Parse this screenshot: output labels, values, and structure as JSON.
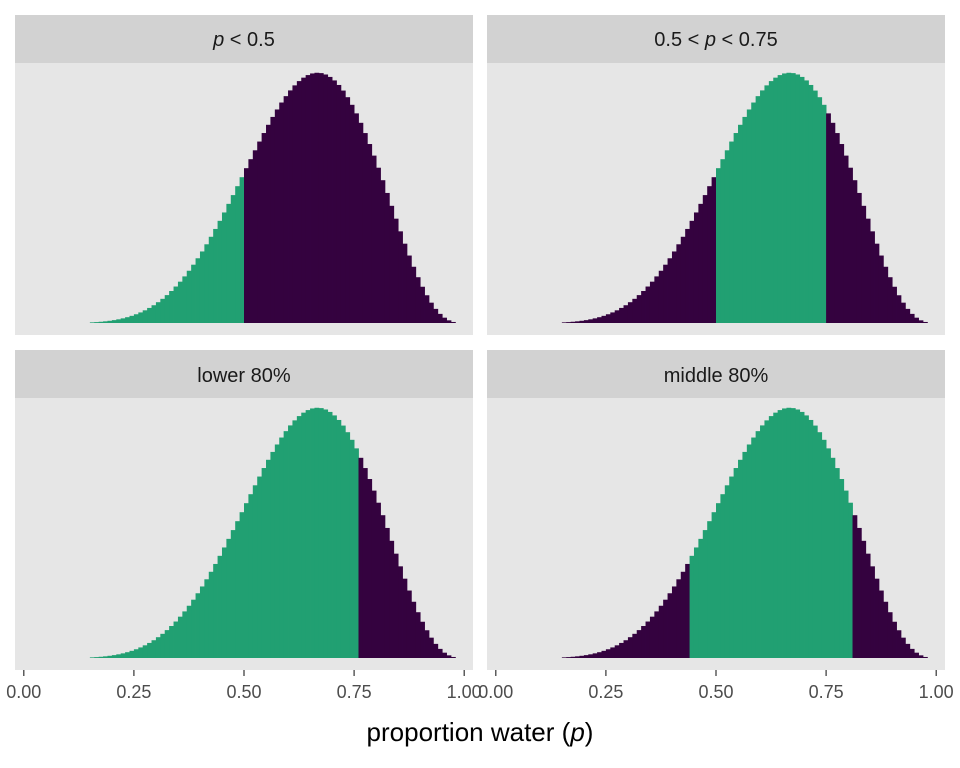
{
  "chart_data": {
    "type": "histogram",
    "facets": [
      {
        "label_parts": [
          {
            "text": "p",
            "italic": true
          },
          {
            "text": " < 0.5",
            "italic": false
          }
        ],
        "highlight": [
          0.0,
          0.5
        ]
      },
      {
        "label_parts": [
          {
            "text": "0.5 < ",
            "italic": false
          },
          {
            "text": "p",
            "italic": true
          },
          {
            "text": " < 0.75",
            "italic": false
          }
        ],
        "highlight": [
          0.5,
          0.75
        ]
      },
      {
        "label_parts": [
          {
            "text": "lower 80%",
            "italic": false
          }
        ],
        "highlight": [
          0.0,
          0.76
        ]
      },
      {
        "label_parts": [
          {
            "text": "middle 80%",
            "italic": false
          }
        ],
        "highlight": [
          0.44,
          0.81
        ]
      }
    ],
    "xlim": [
      -0.02,
      1.02
    ],
    "x_ticks": [
      0.0,
      0.25,
      0.5,
      0.75,
      1.0
    ],
    "x_tick_labels": [
      "0.00",
      "0.25",
      "0.50",
      "0.75",
      "1.00"
    ],
    "xlabel_parts": [
      {
        "text": "proportion water ",
        "italic": false
      },
      {
        "text": "(",
        "italic": false
      },
      {
        "text": "p",
        "italic": true
      },
      {
        "text": ")",
        "italic": false
      }
    ],
    "distribution": {
      "kind": "beta",
      "alpha": 7,
      "beta": 4,
      "bins": 100
    },
    "colors": {
      "highlight": "#21a072",
      "other": "#34023f",
      "panel": "#e6e6e6",
      "strip": "#d2d2d2"
    },
    "grid": false
  }
}
